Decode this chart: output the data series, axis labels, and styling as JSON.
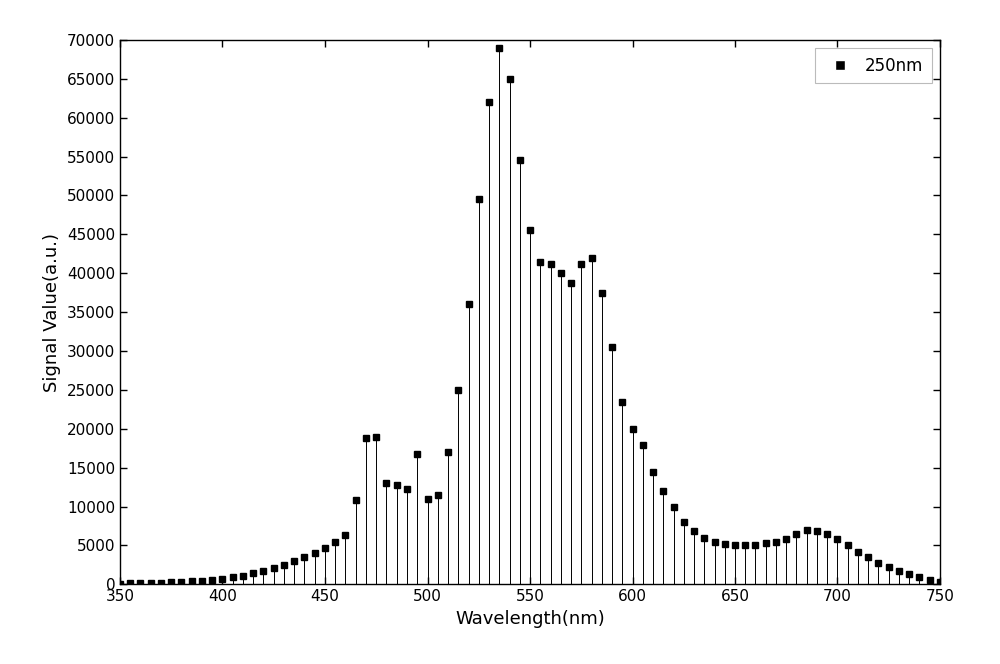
{
  "title": "",
  "xlabel": "Wavelength(nm)",
  "ylabel": "Signal Value(a.u.)",
  "legend_label": "250nm",
  "xlim": [
    350,
    750
  ],
  "ylim": [
    0,
    70000
  ],
  "yticks": [
    0,
    5000,
    10000,
    15000,
    20000,
    25000,
    30000,
    35000,
    40000,
    45000,
    50000,
    55000,
    60000,
    65000,
    70000
  ],
  "xticks": [
    350,
    400,
    450,
    500,
    550,
    600,
    650,
    700,
    750
  ],
  "wavelengths": [
    350,
    355,
    360,
    365,
    370,
    375,
    380,
    385,
    390,
    395,
    400,
    405,
    410,
    415,
    420,
    425,
    430,
    435,
    440,
    445,
    450,
    455,
    460,
    465,
    470,
    475,
    480,
    485,
    490,
    495,
    500,
    505,
    510,
    515,
    520,
    525,
    530,
    535,
    540,
    545,
    550,
    555,
    560,
    565,
    570,
    575,
    580,
    585,
    590,
    595,
    600,
    605,
    610,
    615,
    620,
    625,
    630,
    635,
    640,
    645,
    650,
    655,
    660,
    665,
    670,
    675,
    680,
    685,
    690,
    695,
    700,
    705,
    710,
    715,
    720,
    725,
    730,
    735,
    740,
    745,
    750
  ],
  "values": [
    100,
    120,
    140,
    160,
    200,
    250,
    300,
    380,
    450,
    550,
    700,
    900,
    1100,
    1400,
    1700,
    2100,
    2500,
    3000,
    3500,
    4000,
    4700,
    5500,
    6400,
    10800,
    18800,
    19000,
    13000,
    12800,
    12200,
    16800,
    11000,
    11500,
    17000,
    25000,
    36000,
    49500,
    62000,
    69000,
    65000,
    54500,
    45500,
    41500,
    41200,
    40000,
    38800,
    41200,
    42000,
    37500,
    30500,
    23500,
    20000,
    17900,
    14500,
    12000,
    10000,
    8000,
    6800,
    6000,
    5500,
    5200,
    5000,
    5000,
    5100,
    5300,
    5500,
    5800,
    6500,
    7000,
    6800,
    6500,
    5800,
    5000,
    4200,
    3500,
    2800,
    2200,
    1700,
    1300,
    900,
    600,
    300
  ],
  "line_color": "#000000",
  "marker_color": "#000000",
  "marker_style": "s",
  "marker_size": 4,
  "background_color": "#ffffff",
  "fig_width": 10.0,
  "fig_height": 6.64,
  "dpi": 100,
  "xlabel_fontsize": 13,
  "ylabel_fontsize": 13,
  "tick_labelsize": 11,
  "legend_fontsize": 12,
  "legend_marker_size": 7
}
